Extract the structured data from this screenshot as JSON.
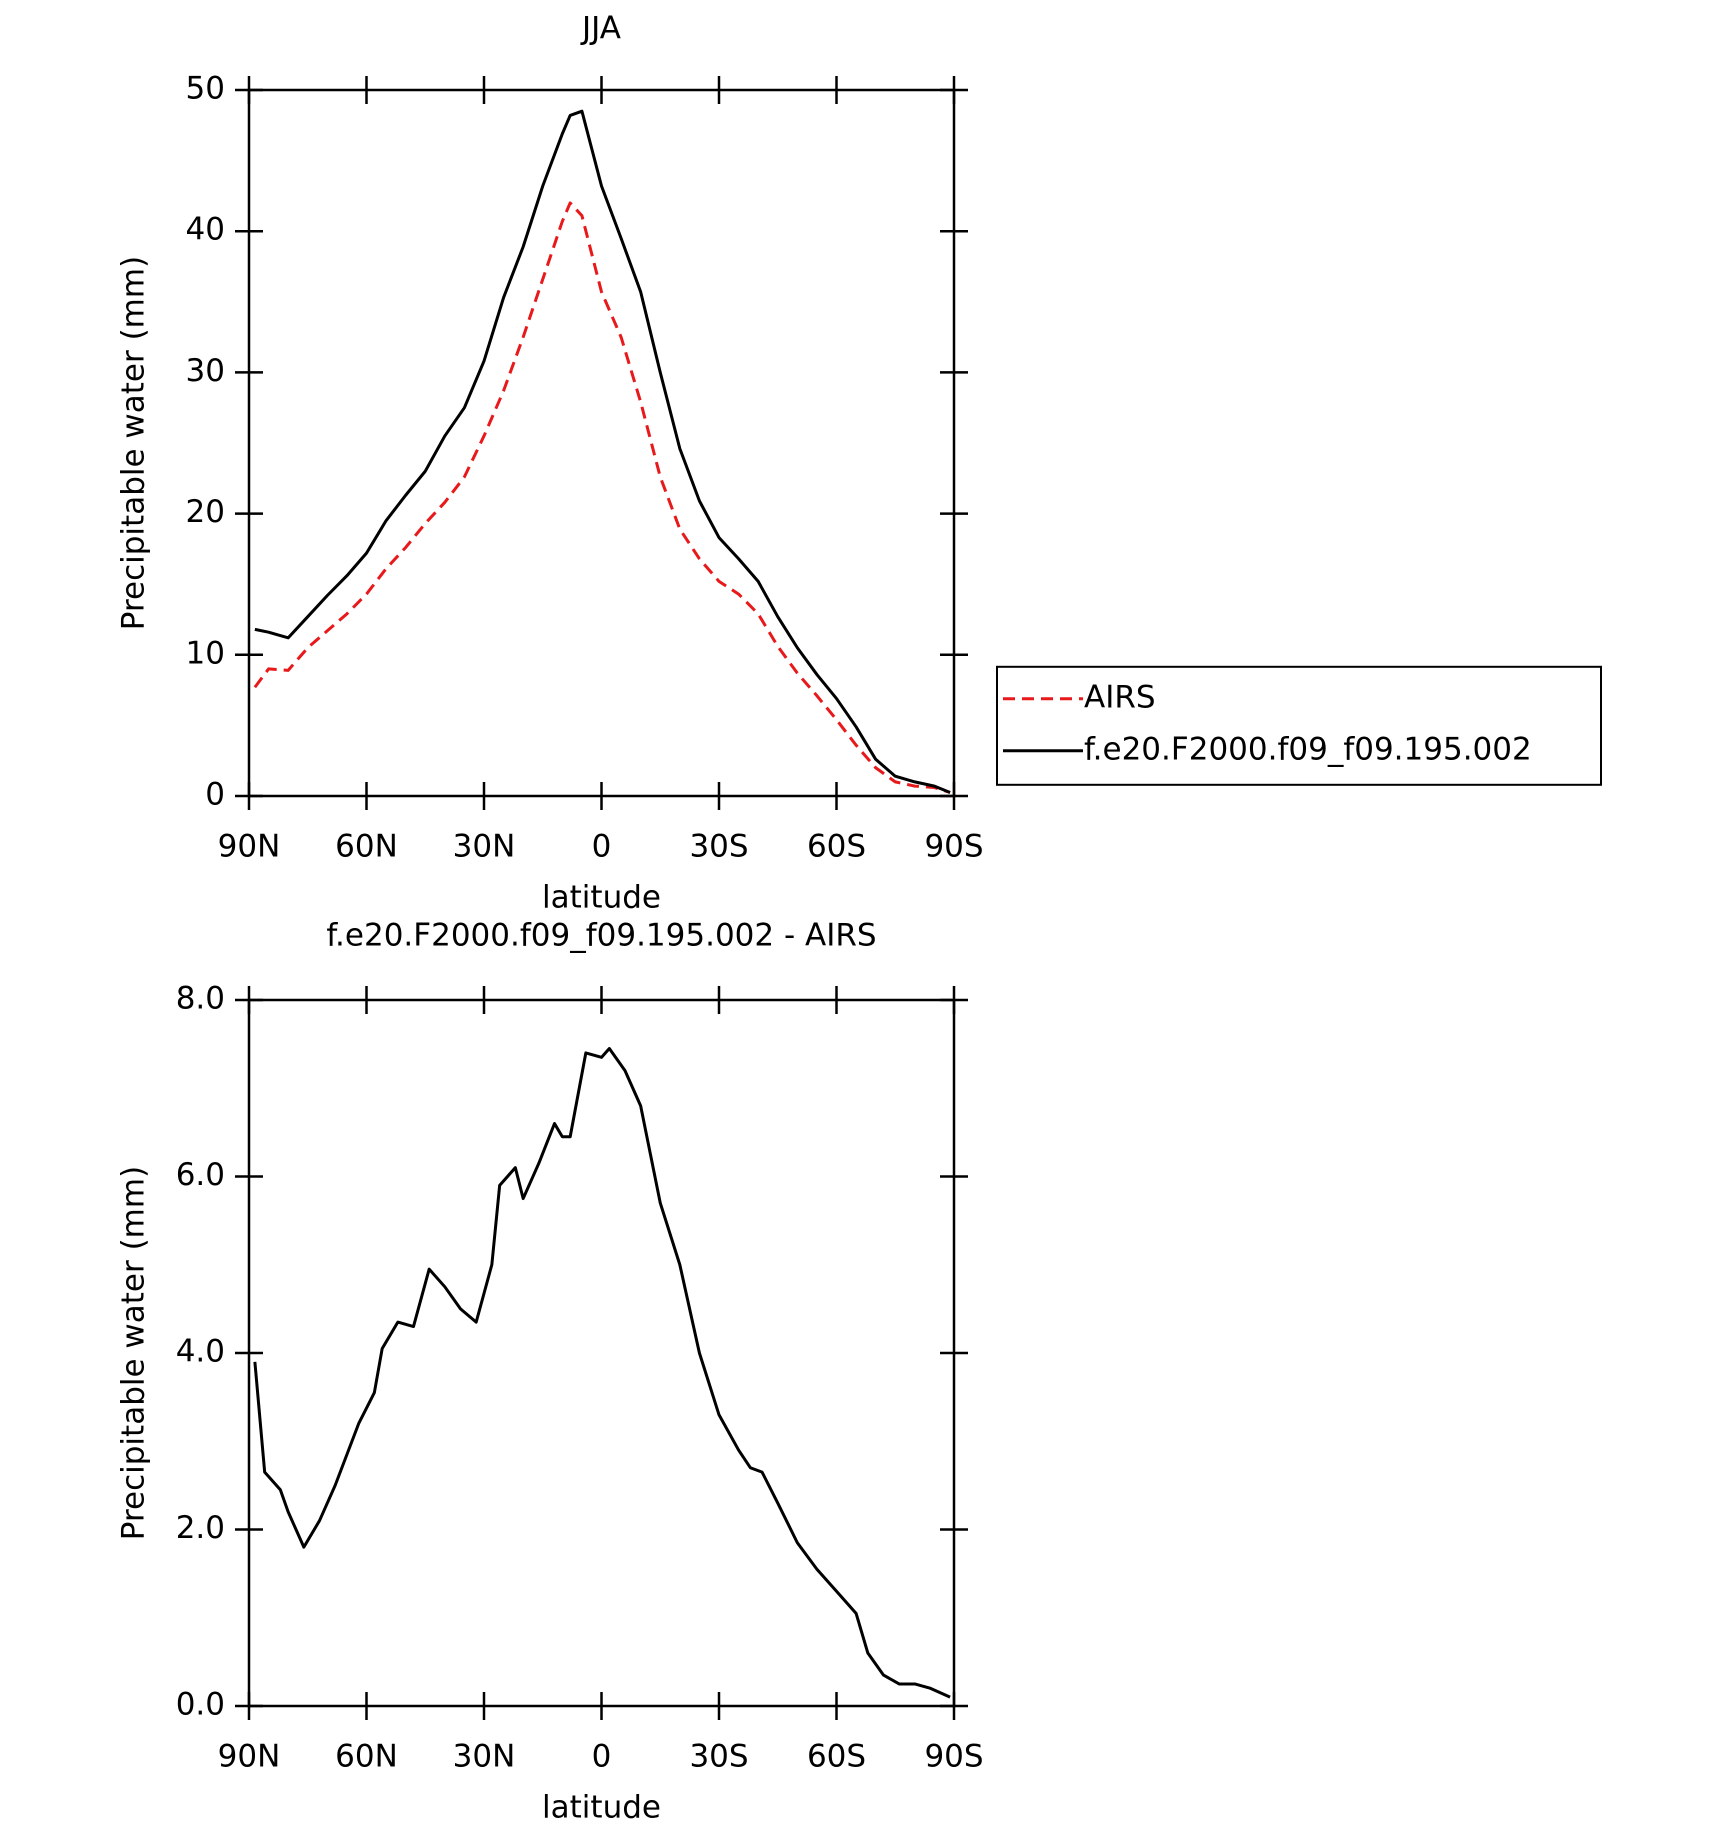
{
  "chart_data": [
    {
      "type": "line",
      "title": "JJA",
      "x_label": "latitude",
      "y_label": "Precipitable water (mm)",
      "x": [
        88.5,
        85,
        80,
        75,
        70,
        65,
        60,
        55,
        50,
        45,
        40,
        35,
        30,
        25,
        20,
        15,
        10,
        8,
        5,
        0,
        -5,
        -10,
        -15,
        -20,
        -25,
        -30,
        -35,
        -40,
        -45,
        -50,
        -55,
        -60,
        -65,
        -70,
        -75,
        -80,
        -85,
        -89
      ],
      "series": [
        {
          "name": "AIRS",
          "color": "#e8191b",
          "dash": true,
          "values": [
            7.7,
            9.0,
            8.9,
            10.5,
            11.7,
            12.9,
            14.3,
            16.1,
            17.6,
            19.3,
            20.8,
            22.6,
            25.5,
            28.7,
            32.5,
            36.6,
            40.7,
            42.0,
            41.1,
            35.7,
            32.5,
            27.9,
            22.6,
            18.9,
            16.8,
            15.2,
            14.3,
            12.9,
            10.6,
            8.7,
            7.1,
            5.4,
            3.6,
            2.0,
            1.0,
            0.7,
            0.6,
            0.25
          ]
        },
        {
          "name": "f.e20.F2000.f09_f09.195.002",
          "color": "#000000",
          "dash": false,
          "values": [
            11.8,
            11.6,
            11.2,
            12.7,
            14.2,
            15.6,
            17.2,
            19.5,
            21.3,
            23.0,
            25.5,
            27.5,
            30.8,
            35.3,
            38.9,
            43.2,
            46.9,
            48.2,
            48.5,
            43.2,
            39.5,
            35.7,
            30.0,
            24.6,
            20.9,
            18.3,
            16.8,
            15.2,
            12.7,
            10.5,
            8.6,
            6.9,
            4.9,
            2.6,
            1.4,
            1.0,
            0.7,
            0.25
          ]
        }
      ],
      "xlim": [
        90,
        -90
      ],
      "xticks": [
        {
          "value": 90,
          "label": "90N"
        },
        {
          "value": 60,
          "label": "60N"
        },
        {
          "value": 30,
          "label": "30N"
        },
        0,
        {
          "value": -30,
          "label": "30S"
        },
        {
          "value": -60,
          "label": "60S"
        },
        {
          "value": -90,
          "label": "90S"
        }
      ],
      "ylim": [
        0,
        50
      ],
      "yticks": [
        0,
        10,
        20,
        30,
        40,
        50
      ],
      "legend": "right"
    },
    {
      "type": "line",
      "title": "f.e20.F2000.f09_f09.195.002 - AIRS",
      "x_label": "latitude",
      "y_label": "Precipitable water (mm)",
      "x": [
        88.5,
        86,
        82,
        80,
        76,
        72,
        68,
        65,
        62,
        58,
        56,
        52,
        48,
        44,
        40,
        36,
        32,
        28,
        26,
        22,
        20,
        16,
        12,
        10,
        8,
        4,
        0,
        -2,
        -6,
        -10,
        -15,
        -20,
        -25,
        -30,
        -35,
        -38,
        -41,
        -45,
        -50,
        -55,
        -60,
        -65,
        -68,
        -72,
        -76,
        -80,
        -84,
        -89
      ],
      "series": [
        {
          "color": "#000000",
          "dash": false,
          "values": [
            3.9,
            2.65,
            2.45,
            2.2,
            1.8,
            2.1,
            2.5,
            2.85,
            3.2,
            3.55,
            4.05,
            4.35,
            4.3,
            4.95,
            4.75,
            4.5,
            4.35,
            5.0,
            5.9,
            6.1,
            5.75,
            6.15,
            6.6,
            6.45,
            6.45,
            7.4,
            7.35,
            7.45,
            7.2,
            6.8,
            5.7,
            5.0,
            4.0,
            3.3,
            2.9,
            2.7,
            2.65,
            2.3,
            1.85,
            1.55,
            1.3,
            1.05,
            0.6,
            0.35,
            0.25,
            0.25,
            0.2,
            0.1
          ]
        }
      ],
      "xlim": [
        90,
        -90
      ],
      "xticks": [
        {
          "value": 90,
          "label": "90N"
        },
        {
          "value": 60,
          "label": "60N"
        },
        {
          "value": 30,
          "label": "30N"
        },
        0,
        {
          "value": -30,
          "label": "30S"
        },
        {
          "value": -60,
          "label": "60S"
        },
        {
          "value": -90,
          "label": "90S"
        }
      ],
      "ylim": [
        0,
        8
      ],
      "yticks": [
        {
          "value": 0,
          "label": "0.0"
        },
        {
          "value": 2,
          "label": "2.0"
        },
        {
          "value": 4,
          "label": "4.0"
        },
        {
          "value": 6,
          "label": "6.0"
        },
        {
          "value": 8,
          "label": "8.0"
        }
      ]
    }
  ]
}
